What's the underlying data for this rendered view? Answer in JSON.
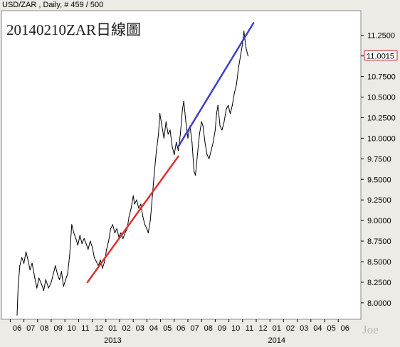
{
  "header": {
    "symbol_line": "USD/ZAR , Daily, # 459 / 500"
  },
  "watermark": "Joe",
  "colors": {
    "background": "#ecebe6",
    "plot_bg": "#ffffff",
    "price_line": "#000000",
    "support_line": "#e03030",
    "channel_line": "#4040c8",
    "current_price_box": "#cc2222"
  },
  "chart_data": {
    "type": "line",
    "title": "20140210ZAR日線圖",
    "xlabel": "",
    "ylabel": "",
    "ylim": [
      7.8,
      11.55
    ],
    "y_ticks": [
      "8.0000",
      "8.2500",
      "8.5000",
      "8.7500",
      "9.0000",
      "9.2500",
      "9.5000",
      "9.7500",
      "10.0000",
      "10.2500",
      "10.5000",
      "10.7500",
      "11.0000",
      "11.2500"
    ],
    "current_price": "11.0015",
    "x_month_labels": [
      "06",
      "07",
      "08",
      "09",
      "10",
      "11",
      "12",
      "01",
      "02",
      "03",
      "04",
      "05",
      "06",
      "07",
      "08",
      "09",
      "10",
      "11",
      "12",
      "01",
      "02",
      "03",
      "04",
      "05",
      "06"
    ],
    "x_year_labels": [
      {
        "label": "2013",
        "month_index": 7
      },
      {
        "label": "2014",
        "month_index": 19
      }
    ],
    "grid": false,
    "series": [
      {
        "values": [
          [
            0.0,
            7.85
          ],
          [
            0.08,
            8.2
          ],
          [
            0.2,
            8.45
          ],
          [
            0.35,
            8.55
          ],
          [
            0.5,
            8.48
          ],
          [
            0.65,
            8.62
          ],
          [
            0.8,
            8.52
          ],
          [
            0.95,
            8.4
          ],
          [
            1.1,
            8.48
          ],
          [
            1.3,
            8.3
          ],
          [
            1.45,
            8.18
          ],
          [
            1.6,
            8.3
          ],
          [
            1.8,
            8.22
          ],
          [
            1.95,
            8.15
          ],
          [
            2.1,
            8.28
          ],
          [
            2.3,
            8.18
          ],
          [
            2.5,
            8.25
          ],
          [
            2.65,
            8.35
          ],
          [
            2.8,
            8.45
          ],
          [
            2.95,
            8.35
          ],
          [
            3.1,
            8.28
          ],
          [
            3.25,
            8.38
          ],
          [
            3.4,
            8.2
          ],
          [
            3.55,
            8.28
          ],
          [
            3.7,
            8.35
          ],
          [
            3.85,
            8.58
          ],
          [
            4.0,
            8.95
          ],
          [
            4.15,
            8.85
          ],
          [
            4.3,
            8.78
          ],
          [
            4.45,
            8.7
          ],
          [
            4.6,
            8.82
          ],
          [
            4.75,
            8.72
          ],
          [
            4.9,
            8.78
          ],
          [
            5.05,
            8.72
          ],
          [
            5.2,
            8.65
          ],
          [
            5.35,
            8.75
          ],
          [
            5.5,
            8.68
          ],
          [
            5.65,
            8.55
          ],
          [
            5.8,
            8.5
          ],
          [
            5.95,
            8.45
          ],
          [
            6.1,
            8.52
          ],
          [
            6.25,
            8.42
          ],
          [
            6.4,
            8.5
          ],
          [
            6.55,
            8.65
          ],
          [
            6.7,
            8.75
          ],
          [
            6.85,
            8.9
          ],
          [
            7.0,
            8.95
          ],
          [
            7.15,
            8.85
          ],
          [
            7.3,
            8.9
          ],
          [
            7.45,
            8.8
          ],
          [
            7.6,
            8.85
          ],
          [
            7.75,
            8.78
          ],
          [
            7.9,
            8.85
          ],
          [
            8.05,
            8.9
          ],
          [
            8.2,
            9.05
          ],
          [
            8.35,
            9.15
          ],
          [
            8.5,
            9.3
          ],
          [
            8.6,
            9.2
          ],
          [
            8.75,
            9.25
          ],
          [
            8.9,
            9.15
          ],
          [
            9.05,
            9.2
          ],
          [
            9.2,
            9.05
          ],
          [
            9.35,
            8.95
          ],
          [
            9.5,
            8.9
          ],
          [
            9.6,
            8.85
          ],
          [
            9.75,
            9.0
          ],
          [
            9.9,
            9.3
          ],
          [
            10.05,
            9.6
          ],
          [
            10.2,
            9.85
          ],
          [
            10.35,
            10.05
          ],
          [
            10.45,
            10.3
          ],
          [
            10.6,
            10.15
          ],
          [
            10.75,
            10.0
          ],
          [
            10.9,
            10.2
          ],
          [
            11.05,
            10.05
          ],
          [
            11.2,
            10.1
          ],
          [
            11.35,
            9.9
          ],
          [
            11.5,
            9.8
          ],
          [
            11.65,
            9.95
          ],
          [
            11.8,
            9.85
          ],
          [
            11.95,
            10.05
          ],
          [
            12.1,
            10.35
          ],
          [
            12.2,
            10.45
          ],
          [
            12.35,
            10.2
          ],
          [
            12.5,
            10.0
          ],
          [
            12.65,
            10.15
          ],
          [
            12.8,
            9.95
          ],
          [
            12.95,
            9.6
          ],
          [
            13.05,
            9.55
          ],
          [
            13.2,
            9.8
          ],
          [
            13.35,
            10.05
          ],
          [
            13.5,
            10.2
          ],
          [
            13.6,
            10.15
          ],
          [
            13.75,
            9.95
          ],
          [
            13.9,
            9.8
          ],
          [
            14.05,
            9.75
          ],
          [
            14.2,
            9.85
          ],
          [
            14.35,
            9.95
          ],
          [
            14.5,
            10.1
          ],
          [
            14.6,
            10.3
          ],
          [
            14.7,
            10.4
          ],
          [
            14.85,
            10.15
          ],
          [
            15.0,
            10.1
          ],
          [
            15.15,
            10.2
          ],
          [
            15.3,
            10.35
          ],
          [
            15.45,
            10.4
          ],
          [
            15.6,
            10.3
          ],
          [
            15.75,
            10.4
          ],
          [
            15.9,
            10.55
          ],
          [
            16.05,
            10.65
          ],
          [
            16.2,
            10.85
          ],
          [
            16.35,
            11.0
          ],
          [
            16.5,
            11.15
          ],
          [
            16.6,
            11.3
          ],
          [
            16.75,
            11.1
          ],
          [
            16.9,
            11.0
          ]
        ]
      }
    ],
    "trendlines": [
      {
        "color": "red",
        "from": [
          5.15,
          8.25
        ],
        "to": [
          11.8,
          9.78
        ]
      },
      {
        "color": "blue",
        "from": [
          11.8,
          9.9
        ],
        "to": [
          17.3,
          11.4
        ]
      }
    ]
  }
}
